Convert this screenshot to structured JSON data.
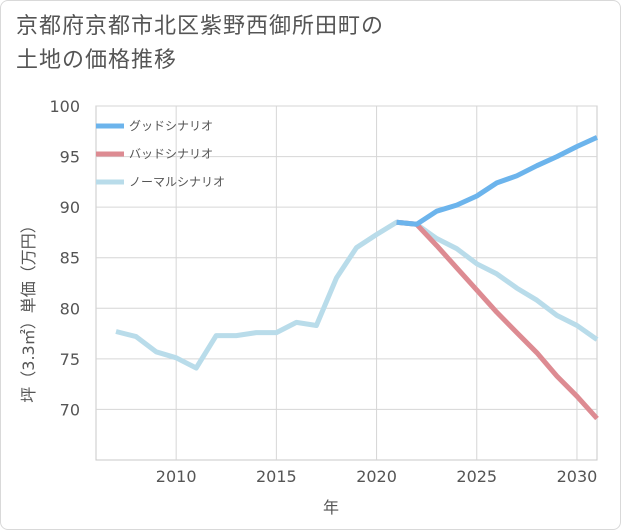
{
  "title": {
    "line1": "京都府京都市北区紫野西御所田町の",
    "line2": "土地の価格推移"
  },
  "chart_data": {
    "type": "line",
    "xlabel": "年",
    "ylabel": "坪（3.3㎡）単価（万円）",
    "xlim": [
      2006,
      2031
    ],
    "ylim": [
      65,
      100
    ],
    "x_ticks": [
      2010,
      2015,
      2020,
      2025,
      2030
    ],
    "x_tick_labels": [
      "2010",
      "2015",
      "2020",
      "2025",
      "2030"
    ],
    "y_ticks": [
      70,
      75,
      80,
      85,
      90,
      95,
      100
    ],
    "y_tick_labels": [
      "70",
      "75",
      "80",
      "85",
      "90",
      "95",
      "100"
    ],
    "grid": true,
    "legend_position": "top-left",
    "series": [
      {
        "name": "グッドシナリオ",
        "color": "#6cb4ec",
        "x": [
          2021,
          2022,
          2023,
          2024,
          2025,
          2026,
          2027,
          2028,
          2029,
          2030,
          2031
        ],
        "y": [
          88.5,
          88.3,
          89.6,
          90.2,
          91.1,
          92.4,
          93.1,
          94.1,
          95.0,
          96.0,
          96.9
        ]
      },
      {
        "name": "バッドシナリオ",
        "color": "#dd8b92",
        "x": [
          2021,
          2022,
          2023,
          2024,
          2025,
          2026,
          2027,
          2028,
          2029,
          2030,
          2031
        ],
        "y": [
          88.5,
          88.3,
          86.2,
          84.0,
          81.8,
          79.6,
          77.6,
          75.6,
          73.3,
          71.3,
          69.1
        ]
      },
      {
        "name": "ノーマルシナリオ",
        "color": "#b9dcea",
        "x": [
          2007,
          2008,
          2009,
          2010,
          2011,
          2012,
          2013,
          2014,
          2015,
          2016,
          2017,
          2018,
          2019,
          2020,
          2021,
          2022,
          2023,
          2024,
          2025,
          2026,
          2027,
          2028,
          2029,
          2030,
          2031
        ],
        "y": [
          77.7,
          77.2,
          75.7,
          75.1,
          74.1,
          77.3,
          77.3,
          77.6,
          77.6,
          78.6,
          78.3,
          83.0,
          86.0,
          87.3,
          88.5,
          88.3,
          86.9,
          85.9,
          84.4,
          83.4,
          82.0,
          80.8,
          79.3,
          78.3,
          76.9
        ]
      }
    ]
  }
}
